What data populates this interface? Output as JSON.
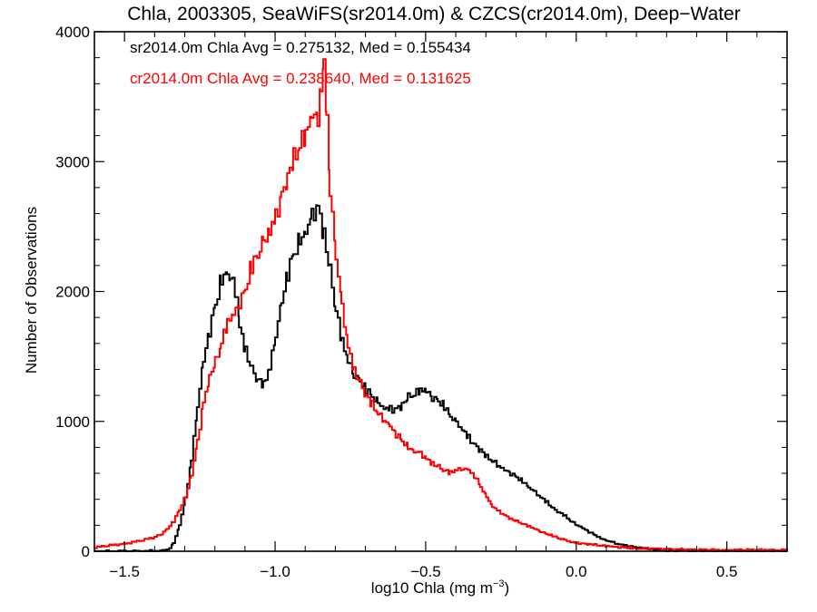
{
  "chart_data": {
    "type": "line",
    "style": "histogram-step",
    "title": "Chla, 2003305, SeaWiFS(sr2014.0m) & CZCS(cr2014.0m), Deep−Water",
    "xlabel_main": "log10 Chla (mg m",
    "xlabel_sup": "−3",
    "xlabel_end": ")",
    "ylabel": "Number of Observations",
    "xlim": [
      -1.6,
      0.7
    ],
    "ylim": [
      0,
      4000
    ],
    "xticks": [
      -1.5,
      -1.0,
      -0.5,
      0.0,
      0.5
    ],
    "xtick_labels": [
      "−1.5",
      "−1.0",
      "−0.5",
      "0.0",
      "0.5"
    ],
    "yticks": [
      0,
      1000,
      2000,
      3000,
      4000
    ],
    "ytick_labels": [
      "0",
      "1000",
      "2000",
      "3000",
      "4000"
    ],
    "grid": false,
    "annotations": [
      {
        "text": "sr2014.0m Chla Avg = 0.275132, Med = 0.155434",
        "color": "#000000"
      },
      {
        "text": "cr2014.0m Chla Avg = 0.238640, Med = 0.131625",
        "color": "#ff0000"
      }
    ],
    "series": [
      {
        "color": "#000000",
        "x": [
          -1.6,
          -1.4,
          -1.36,
          -1.34,
          -1.32,
          -1.3,
          -1.28,
          -1.26,
          -1.24,
          -1.22,
          -1.2,
          -1.18,
          -1.16,
          -1.15,
          -1.13,
          -1.12,
          -1.1,
          -1.08,
          -1.06,
          -1.04,
          -1.02,
          -1.0,
          -0.98,
          -0.96,
          -0.94,
          -0.92,
          -0.9,
          -0.88,
          -0.86,
          -0.84,
          -0.82,
          -0.8,
          -0.78,
          -0.76,
          -0.74,
          -0.72,
          -0.7,
          -0.68,
          -0.66,
          -0.64,
          -0.62,
          -0.6,
          -0.58,
          -0.56,
          -0.54,
          -0.52,
          -0.5,
          -0.48,
          -0.46,
          -0.44,
          -0.42,
          -0.4,
          -0.38,
          -0.36,
          -0.34,
          -0.32,
          -0.3,
          -0.28,
          -0.26,
          -0.24,
          -0.22,
          -0.2,
          -0.18,
          -0.16,
          -0.14,
          -0.12,
          -0.1,
          -0.08,
          -0.06,
          -0.04,
          -0.02,
          0.0,
          0.02,
          0.04,
          0.06,
          0.08,
          0.1,
          0.12,
          0.14,
          0.16,
          0.18,
          0.2,
          0.22,
          0.24,
          0.26,
          0.28,
          0.3,
          0.32,
          0.35,
          0.4,
          0.45,
          0.5,
          0.55,
          0.6,
          0.65,
          0.7
        ],
        "values": [
          0,
          2,
          10,
          60,
          200,
          400,
          700,
          1100,
          1450,
          1700,
          1900,
          2100,
          2180,
          2100,
          1950,
          1750,
          1550,
          1400,
          1320,
          1270,
          1400,
          1650,
          1900,
          2150,
          2300,
          2400,
          2500,
          2600,
          2680,
          2450,
          2150,
          1850,
          1600,
          1450,
          1350,
          1300,
          1250,
          1200,
          1150,
          1120,
          1100,
          1100,
          1130,
          1180,
          1200,
          1230,
          1220,
          1180,
          1150,
          1120,
          1050,
          1000,
          950,
          880,
          820,
          780,
          720,
          690,
          650,
          620,
          600,
          570,
          540,
          500,
          460,
          420,
          380,
          330,
          300,
          270,
          230,
          200,
          175,
          150,
          125,
          100,
          85,
          70,
          55,
          45,
          35,
          28,
          20,
          15,
          12,
          10,
          8,
          6,
          5,
          4,
          3,
          2,
          2,
          2,
          1,
          1
        ]
      },
      {
        "color": "#ff0000",
        "x": [
          -1.6,
          -1.55,
          -1.5,
          -1.45,
          -1.4,
          -1.38,
          -1.36,
          -1.34,
          -1.32,
          -1.3,
          -1.28,
          -1.26,
          -1.24,
          -1.22,
          -1.2,
          -1.18,
          -1.16,
          -1.14,
          -1.12,
          -1.1,
          -1.08,
          -1.06,
          -1.04,
          -1.02,
          -1.0,
          -0.98,
          -0.96,
          -0.94,
          -0.92,
          -0.9,
          -0.88,
          -0.86,
          -0.85,
          -0.84,
          -0.83,
          -0.82,
          -0.8,
          -0.78,
          -0.76,
          -0.74,
          -0.72,
          -0.7,
          -0.68,
          -0.66,
          -0.64,
          -0.62,
          -0.6,
          -0.58,
          -0.56,
          -0.54,
          -0.52,
          -0.5,
          -0.48,
          -0.46,
          -0.44,
          -0.42,
          -0.4,
          -0.38,
          -0.36,
          -0.34,
          -0.32,
          -0.3,
          -0.28,
          -0.26,
          -0.24,
          -0.22,
          -0.2,
          -0.18,
          -0.16,
          -0.14,
          -0.12,
          -0.1,
          -0.08,
          -0.06,
          -0.04,
          -0.02,
          0.0,
          0.02,
          0.04,
          0.06,
          0.08,
          0.1,
          0.12,
          0.14,
          0.16,
          0.18,
          0.2,
          0.25,
          0.3,
          0.35,
          0.4,
          0.45,
          0.5,
          0.55,
          0.6,
          0.65,
          0.7
        ],
        "values": [
          30,
          45,
          60,
          80,
          110,
          130,
          170,
          230,
          320,
          420,
          600,
          850,
          1150,
          1350,
          1450,
          1600,
          1750,
          1800,
          1900,
          2000,
          2200,
          2300,
          2400,
          2500,
          2600,
          2750,
          2900,
          3000,
          3100,
          3200,
          3300,
          3350,
          3500,
          3780,
          3350,
          2800,
          2300,
          1900,
          1600,
          1400,
          1300,
          1200,
          1120,
          1050,
          1000,
          950,
          900,
          850,
          800,
          780,
          760,
          720,
          680,
          650,
          620,
          600,
          620,
          630,
          620,
          580,
          500,
          420,
          350,
          310,
          280,
          250,
          230,
          210,
          190,
          170,
          150,
          130,
          120,
          100,
          90,
          75,
          65,
          60,
          55,
          48,
          42,
          38,
          33,
          30,
          28,
          25,
          22,
          20,
          18,
          15,
          12,
          10,
          10,
          10,
          10,
          10,
          10
        ]
      }
    ]
  }
}
